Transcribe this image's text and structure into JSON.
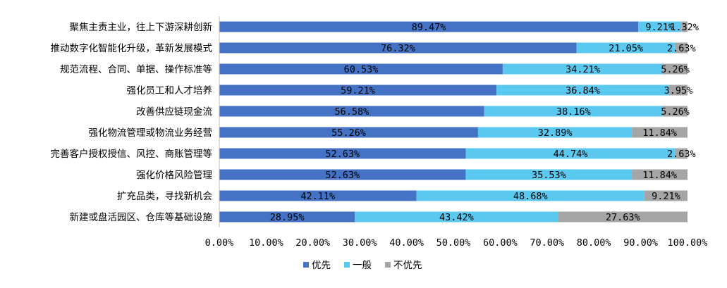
{
  "chart_data": {
    "type": "bar",
    "orientation": "horizontal",
    "stacked": "percent",
    "title": "",
    "xlabel": "",
    "ylabel": "",
    "xlim": [
      0,
      100
    ],
    "x_ticks": [
      "0.00%",
      "10.00%",
      "20.00%",
      "30.00%",
      "40.00%",
      "50.00%",
      "60.00%",
      "70.00%",
      "80.00%",
      "90.00%",
      "100.00%"
    ],
    "grid": false,
    "legend_position": "bottom",
    "categories": [
      "聚焦主责主业，往上下游深耕创新",
      "推动数字化智能化升级，革新发展模式",
      "规范流程、合同、单据、操作标准等",
      "强化员工和人才培养",
      "改善供应链现金流",
      "强化物流管理或物流业务经营",
      "完善客户授权授信、风控、商账管理等",
      "强化价格风险管理",
      "扩充品类，寻找新机会",
      "新建或盘活园区、仓库等基础设施"
    ],
    "series": [
      {
        "name": "优先",
        "color": "#4472C4",
        "values": [
          89.47,
          76.32,
          60.53,
          59.21,
          56.58,
          55.26,
          52.63,
          52.63,
          42.11,
          28.95
        ],
        "labels": [
          "89.47%",
          "76.32%",
          "60.53%",
          "59.21%",
          "56.58%",
          "55.26%",
          "52.63%",
          "52.63%",
          "42.11%",
          "28.95%"
        ]
      },
      {
        "name": "一般",
        "color": "#5BC8F0",
        "values": [
          9.21,
          21.05,
          34.21,
          36.84,
          38.16,
          32.89,
          44.74,
          35.53,
          48.68,
          43.42
        ],
        "labels": [
          "9.21%",
          "21.05%",
          "34.21%",
          "36.84%",
          "38.16%",
          "32.89%",
          "44.74%",
          "35.53%",
          "48.68%",
          "43.42%"
        ]
      },
      {
        "name": "不优先",
        "color": "#A5A5A5",
        "values": [
          1.32,
          2.63,
          5.26,
          3.95,
          5.26,
          11.84,
          2.63,
          11.84,
          9.21,
          27.63
        ],
        "labels": [
          "1.32%",
          "2.63%",
          "5.26%",
          "3.95%",
          "5.26%",
          "11.84%",
          "2.63%",
          "11.84%",
          "9.21%",
          "27.63%"
        ]
      }
    ]
  }
}
